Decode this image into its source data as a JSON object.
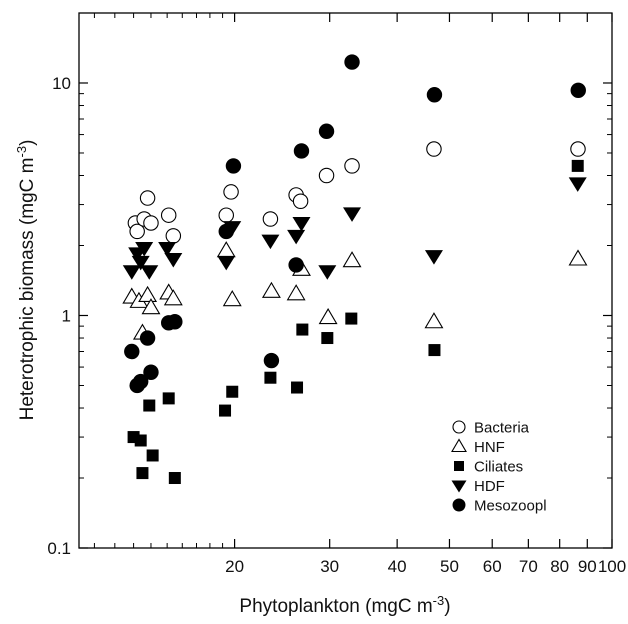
{
  "chart_data": {
    "type": "scatter",
    "title": "",
    "xlabel": "Phytoplankton (mgC m",
    "xlabel_sup": "-3",
    "xlabel_end": ")",
    "ylabel": "Heterotrophic biomass (mgC m",
    "ylabel_sup": "-3",
    "ylabel_end": ")",
    "x_scale": "log",
    "y_scale": "log",
    "xlim": [
      10.3,
      100
    ],
    "ylim": [
      0.1,
      20
    ],
    "x_ticks": [
      {
        "value": 20,
        "label": "20"
      },
      {
        "value": 30,
        "label": "30"
      },
      {
        "value": 40,
        "label": "40"
      },
      {
        "value": 50,
        "label": "50"
      },
      {
        "value": 60,
        "label": "60"
      },
      {
        "value": 70,
        "label": "70"
      },
      {
        "value": 80,
        "label": "80"
      },
      {
        "value": 90,
        "label": "90"
      },
      {
        "value": 100,
        "label": "100"
      }
    ],
    "y_ticks": [
      {
        "value": 0.1,
        "label": "0.1"
      },
      {
        "value": 1,
        "label": "1"
      },
      {
        "value": 10,
        "label": "10"
      }
    ],
    "grid": false,
    "legend_position": "bottom-right",
    "series": [
      {
        "name": "Bacteria",
        "marker": "circle-open",
        "color": "#000000",
        "points": [
          [
            13.1,
            2.5
          ],
          [
            13.2,
            2.3
          ],
          [
            13.6,
            2.6
          ],
          [
            13.8,
            3.2
          ],
          [
            14.0,
            2.5
          ],
          [
            15.1,
            2.7
          ],
          [
            15.4,
            2.2
          ],
          [
            19.3,
            2.7
          ],
          [
            19.7,
            3.4
          ],
          [
            23.3,
            2.6
          ],
          [
            26.0,
            3.3
          ],
          [
            26.5,
            3.1
          ],
          [
            29.6,
            4.0
          ],
          [
            33.0,
            4.4
          ],
          [
            46.8,
            5.2
          ],
          [
            86.5,
            5.2
          ]
        ]
      },
      {
        "name": "HNF",
        "marker": "triangle-up-open",
        "color": "#000000",
        "points": [
          [
            12.9,
            1.2
          ],
          [
            13.3,
            1.15
          ],
          [
            13.5,
            0.84
          ],
          [
            13.8,
            1.22
          ],
          [
            14.0,
            1.08
          ],
          [
            15.1,
            1.25
          ],
          [
            15.4,
            1.18
          ],
          [
            19.3,
            1.9
          ],
          [
            19.8,
            1.17
          ],
          [
            23.4,
            1.27
          ],
          [
            26.0,
            1.24
          ],
          [
            26.6,
            1.58
          ],
          [
            29.8,
            0.98
          ],
          [
            33.0,
            1.72
          ],
          [
            46.8,
            0.94
          ],
          [
            86.5,
            1.75
          ]
        ]
      },
      {
        "name": "Ciliates",
        "marker": "square-filled",
        "color": "#000000",
        "points": [
          [
            13.0,
            0.3
          ],
          [
            13.4,
            0.29
          ],
          [
            13.5,
            0.21
          ],
          [
            13.9,
            0.41
          ],
          [
            14.1,
            0.25
          ],
          [
            15.1,
            0.44
          ],
          [
            15.5,
            0.2
          ],
          [
            19.2,
            0.39
          ],
          [
            19.8,
            0.47
          ],
          [
            23.3,
            0.54
          ],
          [
            26.1,
            0.49
          ],
          [
            26.7,
            0.87
          ],
          [
            29.7,
            0.8
          ],
          [
            32.9,
            0.97
          ],
          [
            46.9,
            0.71
          ],
          [
            86.4,
            4.4
          ]
        ]
      },
      {
        "name": "HDF",
        "marker": "triangle-down-filled",
        "color": "#000000",
        "points": [
          [
            12.9,
            1.55
          ],
          [
            13.2,
            1.85
          ],
          [
            13.4,
            1.7
          ],
          [
            13.6,
            1.95
          ],
          [
            13.9,
            1.55
          ],
          [
            15.0,
            1.95
          ],
          [
            15.4,
            1.75
          ],
          [
            19.3,
            1.7
          ],
          [
            19.8,
            2.4
          ],
          [
            23.3,
            2.1
          ],
          [
            26.0,
            2.2
          ],
          [
            26.6,
            2.5
          ],
          [
            29.7,
            1.55
          ],
          [
            33.0,
            2.75
          ],
          [
            46.8,
            1.8
          ],
          [
            86.4,
            3.7
          ]
        ]
      },
      {
        "name": "Mesozoopl",
        "marker": "circle-filled",
        "color": "#000000",
        "points": [
          [
            12.9,
            0.7
          ],
          [
            13.2,
            0.5
          ],
          [
            13.4,
            0.52
          ],
          [
            13.8,
            0.8
          ],
          [
            14.0,
            0.57
          ],
          [
            15.1,
            0.93
          ],
          [
            15.5,
            0.94
          ],
          [
            19.3,
            2.3
          ],
          [
            19.9,
            4.4
          ],
          [
            23.4,
            0.64
          ],
          [
            26.0,
            1.65
          ],
          [
            26.6,
            5.1
          ],
          [
            29.6,
            6.2
          ],
          [
            33.0,
            12.3
          ],
          [
            46.9,
            8.9
          ],
          [
            86.6,
            9.3
          ]
        ]
      }
    ]
  }
}
